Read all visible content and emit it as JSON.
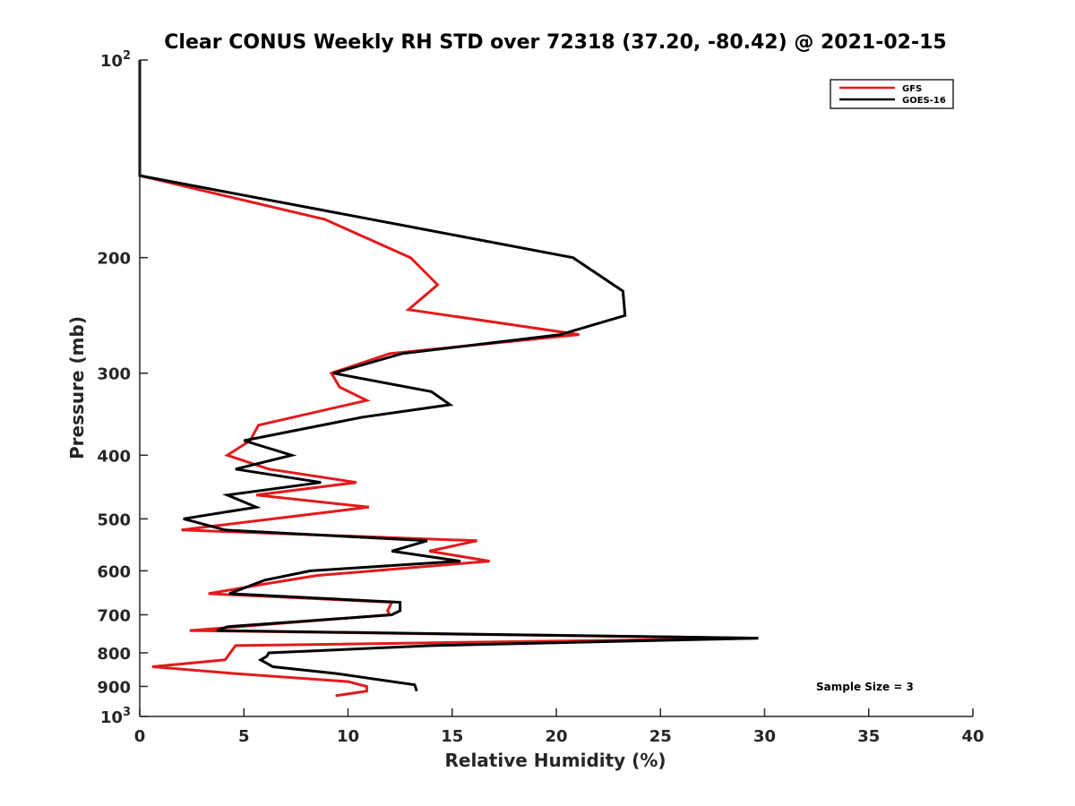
{
  "chart_data": {
    "type": "line",
    "title": "Clear CONUS Weekly RH STD over 72318 (37.20, -80.42) @ 2021-02-15",
    "xlabel": "Relative Humidity (%)",
    "ylabel": "Pressure (mb)",
    "xlim": [
      0,
      40
    ],
    "ylim": [
      1000,
      100
    ],
    "yscale": "log",
    "y_reversed": true,
    "xticks": [
      0,
      5,
      10,
      15,
      20,
      25,
      30,
      35,
      40
    ],
    "xtick_labels": [
      "0",
      "5",
      "10",
      "15",
      "20",
      "25",
      "30",
      "35",
      "40"
    ],
    "yticks": [
      100,
      200,
      300,
      400,
      500,
      600,
      700,
      800,
      900,
      1000
    ],
    "ytick_labels": [
      "10^2",
      "200",
      "300",
      "400",
      "500",
      "600",
      "700",
      "800",
      "900",
      "10^3"
    ],
    "grid": false,
    "legend_position": "top-right",
    "annotation": "Sample Size = 3",
    "series": [
      {
        "name": "GFS",
        "color": "#e31a1c",
        "points": [
          [
            0,
            100
          ],
          [
            0,
            150
          ],
          [
            8.9,
            175
          ],
          [
            13,
            200
          ],
          [
            14.3,
            220
          ],
          [
            12.9,
            240
          ],
          [
            21.1,
            262
          ],
          [
            12,
            280
          ],
          [
            9.2,
            300
          ],
          [
            9.6,
            315
          ],
          [
            10.9,
            330
          ],
          [
            5.7,
            360
          ],
          [
            5.3,
            380
          ],
          [
            4.2,
            400
          ],
          [
            6.2,
            420
          ],
          [
            10.4,
            440
          ],
          [
            5.6,
            460
          ],
          [
            11,
            480
          ],
          [
            2,
            520
          ],
          [
            16.2,
            540
          ],
          [
            13.9,
            560
          ],
          [
            16.8,
            580
          ],
          [
            8.5,
            610
          ],
          [
            5.8,
            630
          ],
          [
            3.3,
            650
          ],
          [
            12.1,
            670
          ],
          [
            11.9,
            690
          ],
          [
            12,
            700
          ],
          [
            2.4,
            740
          ],
          [
            29.7,
            760
          ],
          [
            4.6,
            780
          ],
          [
            4.1,
            820
          ],
          [
            0.6,
            840
          ],
          [
            4.5,
            860
          ],
          [
            10,
            885
          ],
          [
            10.9,
            900
          ],
          [
            10.9,
            915
          ],
          [
            9.4,
            930
          ]
        ]
      },
      {
        "name": "GOES-16",
        "color": "#000000",
        "points": [
          [
            0,
            100
          ],
          [
            0,
            150
          ],
          [
            13.2,
            180
          ],
          [
            20.8,
            200
          ],
          [
            23.2,
            225
          ],
          [
            23.3,
            245
          ],
          [
            20.2,
            262
          ],
          [
            12.6,
            280
          ],
          [
            9.3,
            300
          ],
          [
            14,
            320
          ],
          [
            14.9,
            335
          ],
          [
            10.7,
            350
          ],
          [
            5,
            380
          ],
          [
            7.3,
            400
          ],
          [
            4.6,
            420
          ],
          [
            8.7,
            440
          ],
          [
            4.2,
            460
          ],
          [
            5.6,
            480
          ],
          [
            2.1,
            500
          ],
          [
            4.1,
            520
          ],
          [
            13.8,
            540
          ],
          [
            12.1,
            560
          ],
          [
            15.4,
            580
          ],
          [
            8.2,
            600
          ],
          [
            6,
            620
          ],
          [
            4.3,
            650
          ],
          [
            12.5,
            670
          ],
          [
            12.5,
            690
          ],
          [
            12.1,
            700
          ],
          [
            4.2,
            730
          ],
          [
            3.7,
            740
          ],
          [
            29.7,
            760
          ],
          [
            14,
            780
          ],
          [
            6.2,
            800
          ],
          [
            6.1,
            810
          ],
          [
            5.8,
            820
          ],
          [
            6.4,
            840
          ],
          [
            9.4,
            860
          ],
          [
            13.2,
            895
          ],
          [
            13.3,
            915
          ]
        ]
      }
    ]
  }
}
